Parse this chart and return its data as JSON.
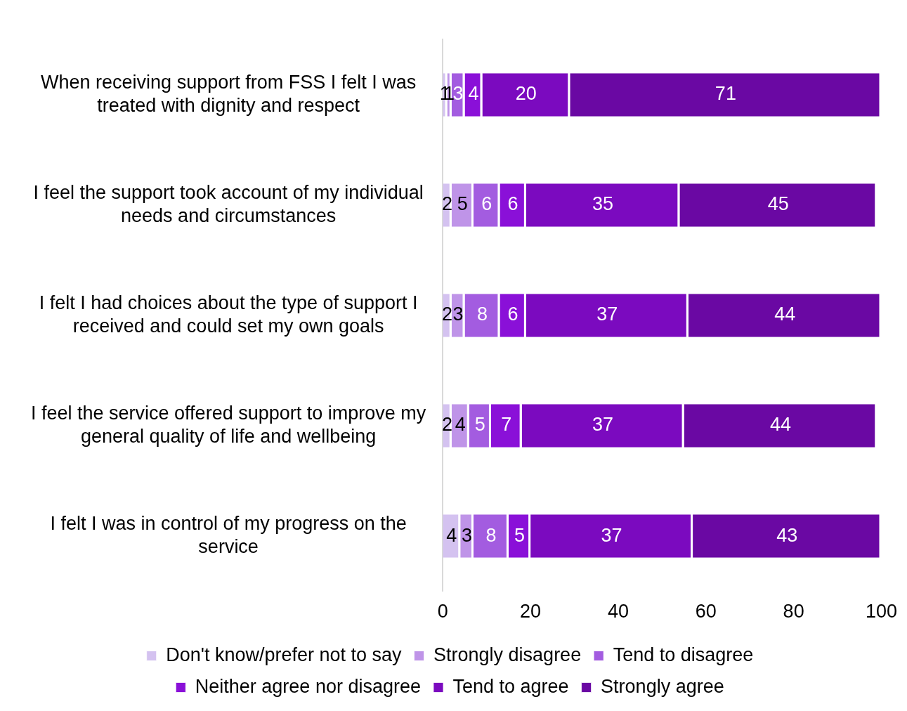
{
  "chart_data": {
    "type": "bar",
    "orientation": "horizontal",
    "stacked": true,
    "categories": [
      "When receiving support from FSS I felt I was treated with dignity and respect",
      "I feel the support took account of my individual needs and circumstances",
      "I felt I had choices about the type of support I received and could set my own goals",
      "I feel the service offered support to improve my general quality of life and wellbeing",
      "I felt I was in control of my progress on the service"
    ],
    "series": [
      {
        "name": "Don't know/prefer not to say",
        "color": "#d4c2f0",
        "values": [
          1,
          2,
          2,
          2,
          4
        ]
      },
      {
        "name": "Strongly disagree",
        "color": "#bf94e8",
        "values": [
          1,
          5,
          3,
          4,
          3
        ]
      },
      {
        "name": "Tend to disagree",
        "color": "#a35ce0",
        "values": [
          3,
          6,
          8,
          5,
          8
        ]
      },
      {
        "name": "Neither agree nor disagree",
        "color": "#8a10d8",
        "values": [
          4,
          6,
          6,
          7,
          5
        ]
      },
      {
        "name": "Tend to agree",
        "color": "#7b0abf",
        "values": [
          20,
          35,
          37,
          37,
          37
        ]
      },
      {
        "name": "Strongly agree",
        "color": "#6a08a3",
        "values": [
          71,
          45,
          44,
          44,
          43
        ]
      }
    ],
    "xlim": [
      0,
      100
    ],
    "xticks": [
      0,
      20,
      40,
      60,
      80,
      100
    ],
    "data_labels": true,
    "legend": "bottom",
    "grid": false
  }
}
